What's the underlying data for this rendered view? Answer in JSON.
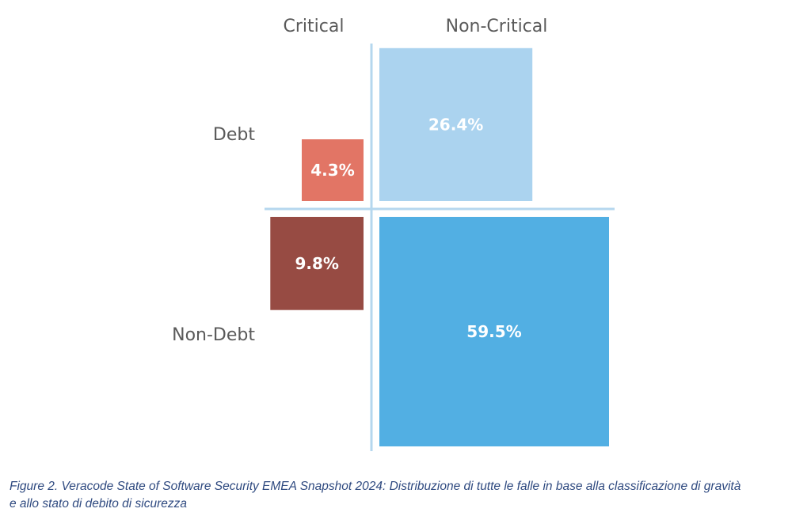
{
  "chart_data": {
    "type": "quadrant",
    "columns": [
      "Critical",
      "Non-Critical"
    ],
    "rows": [
      "Debt",
      "Non-Debt"
    ],
    "cells": [
      {
        "row": "Debt",
        "column": "Critical",
        "value": 4.3,
        "label": "4.3%",
        "color": "#e27565"
      },
      {
        "row": "Debt",
        "column": "Non-Critical",
        "value": 26.4,
        "label": "26.4%",
        "color": "#abd3ef"
      },
      {
        "row": "Non-Debt",
        "column": "Critical",
        "value": 9.8,
        "label": "9.8%",
        "color": "#974b43"
      },
      {
        "row": "Non-Debt",
        "column": "Non-Critical",
        "value": 59.5,
        "label": "59.5%",
        "color": "#52afe3"
      }
    ],
    "divider_color": "#b5d7ee"
  },
  "caption_line1": "Figure 2. Veracode State of Software Security EMEA Snapshot 2024: Distribuzione di tutte le falle in base alla classificazione di gravità",
  "caption_line2": "e allo stato di debito di sicurezza"
}
